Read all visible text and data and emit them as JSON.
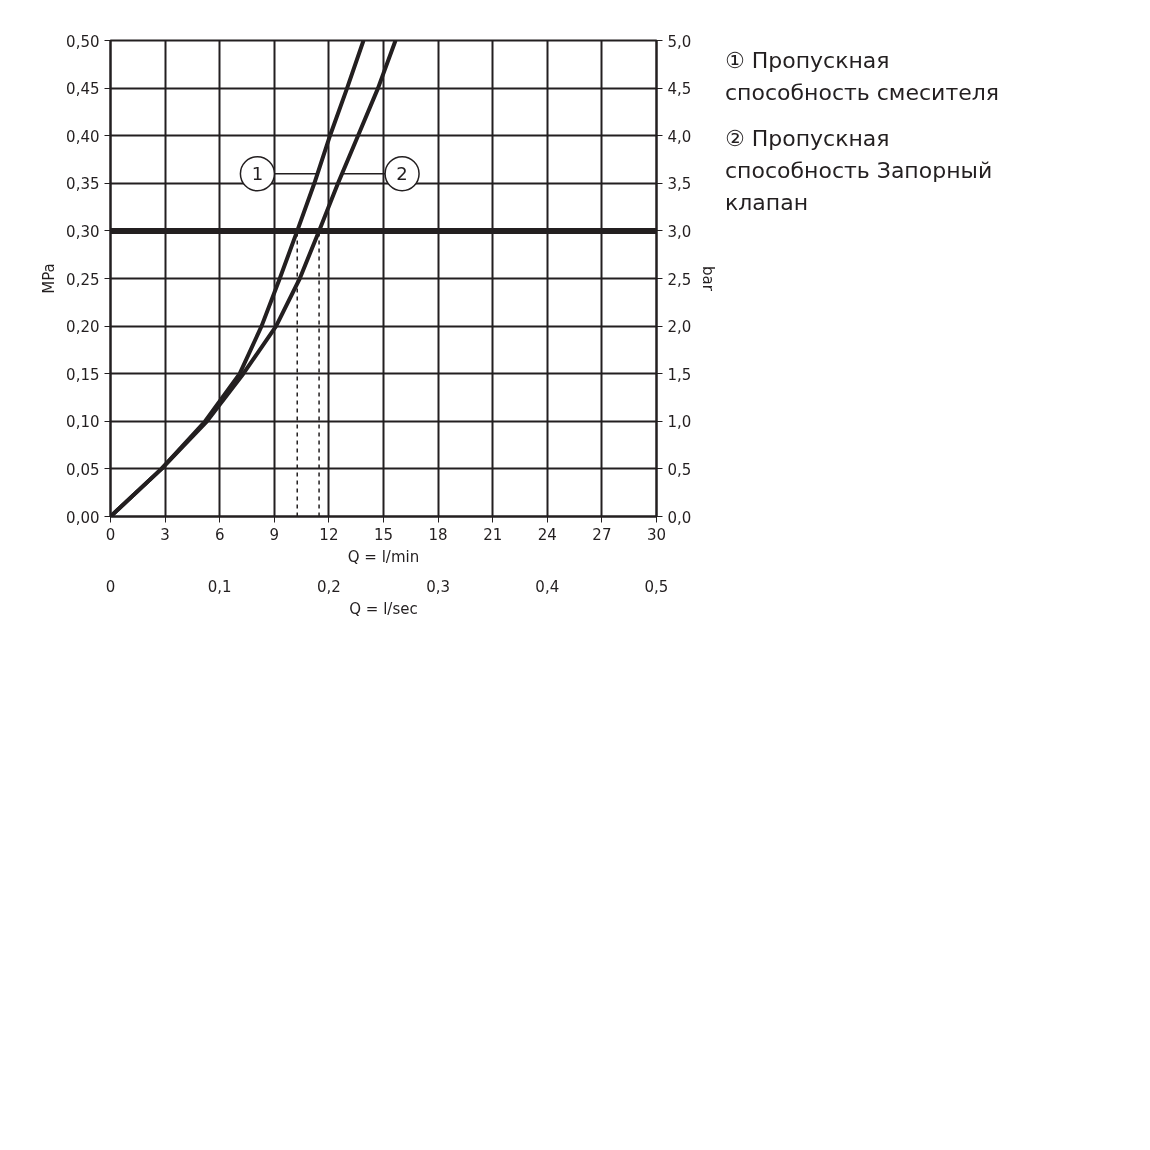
{
  "chart_data": {
    "type": "line",
    "xlabel": "Q = l/min",
    "x2label": "Q = l/sec",
    "ylabel": "MPa",
    "y2label": "bar",
    "xlim": [
      0,
      30
    ],
    "xticks": [
      0,
      3,
      6,
      9,
      12,
      15,
      18,
      21,
      24,
      27,
      30
    ],
    "x2lim": [
      0,
      0.5
    ],
    "x2ticks": [
      0,
      {
        "value": 0.1,
        "label": "0,1"
      },
      {
        "value": 0.2,
        "label": "0,2"
      },
      {
        "value": 0.3,
        "label": "0,3"
      },
      {
        "value": 0.4,
        "label": "0,4"
      },
      {
        "value": 0.5,
        "label": "0,5"
      }
    ],
    "ylim": [
      0,
      0.5
    ],
    "yticks": [
      {
        "value": 0,
        "label": "0,00"
      },
      {
        "value": 0.05,
        "label": "0,05"
      },
      {
        "value": 0.1,
        "label": "0,10"
      },
      {
        "value": 0.15,
        "label": "0,15"
      },
      {
        "value": 0.2,
        "label": "0,20"
      },
      {
        "value": 0.25,
        "label": "0,25"
      },
      {
        "value": 0.3,
        "label": "0,30"
      },
      {
        "value": 0.35,
        "label": "0,35"
      },
      {
        "value": 0.4,
        "label": "0,40"
      },
      {
        "value": 0.45,
        "label": "0,45"
      },
      {
        "value": 0.5,
        "label": "0,50"
      }
    ],
    "y2lim": [
      0,
      5
    ],
    "y2ticks": [
      {
        "value": 0,
        "label": "0,0"
      },
      {
        "value": 0.5,
        "label": "0,5"
      },
      {
        "value": 1,
        "label": "1,0"
      },
      {
        "value": 1.5,
        "label": "1,5"
      },
      {
        "value": 2,
        "label": "2,0"
      },
      {
        "value": 2.5,
        "label": "2,5"
      },
      {
        "value": 3,
        "label": "3,0"
      },
      {
        "value": 3.5,
        "label": "3,5"
      },
      {
        "value": 4,
        "label": "4,0"
      },
      {
        "value": 4.5,
        "label": "4,5"
      },
      {
        "value": 5,
        "label": "5,0"
      }
    ],
    "grid": true,
    "legend": "top",
    "line_style": "solid",
    "series": [
      {
        "name": "1",
        "color": "#231f20",
        "x": [
          0,
          2.8,
          5.2,
          7.1,
          8.3,
          9.3,
          10.26,
          11.2,
          12.06,
          13.0,
          13.9
        ],
        "values": [
          0,
          0.05,
          0.1,
          0.15,
          0.2,
          0.25,
          0.3,
          0.35,
          0.4,
          0.45,
          0.5
        ]
      },
      {
        "name": "2",
        "color": "#231f20",
        "x": [
          0,
          2.8,
          5.3,
          7.3,
          9.1,
          10.4,
          11.46,
          12.5,
          13.6,
          14.7,
          15.66
        ],
        "values": [
          0,
          0.05,
          0.1,
          0.15,
          0.2,
          0.25,
          0.3,
          0.35,
          0.4,
          0.45,
          0.5
        ]
      },
      {
        "color": "#231f20",
        "line_style": "dashed",
        "x": [
          10.26,
          10.26
        ],
        "values": [
          0,
          0.3
        ]
      },
      {
        "color": "#231f20",
        "line_style": "dashed",
        "x": [
          11.46,
          11.46
        ],
        "values": [
          0,
          0.3
        ]
      }
    ],
    "ref_lines": [
      {
        "axis": "y",
        "value": 0.3,
        "color": "#231f20"
      }
    ],
    "annotations": [
      "① Пропускная способность смесителя",
      "② Пропускная способность Запорный клапан"
    ]
  }
}
